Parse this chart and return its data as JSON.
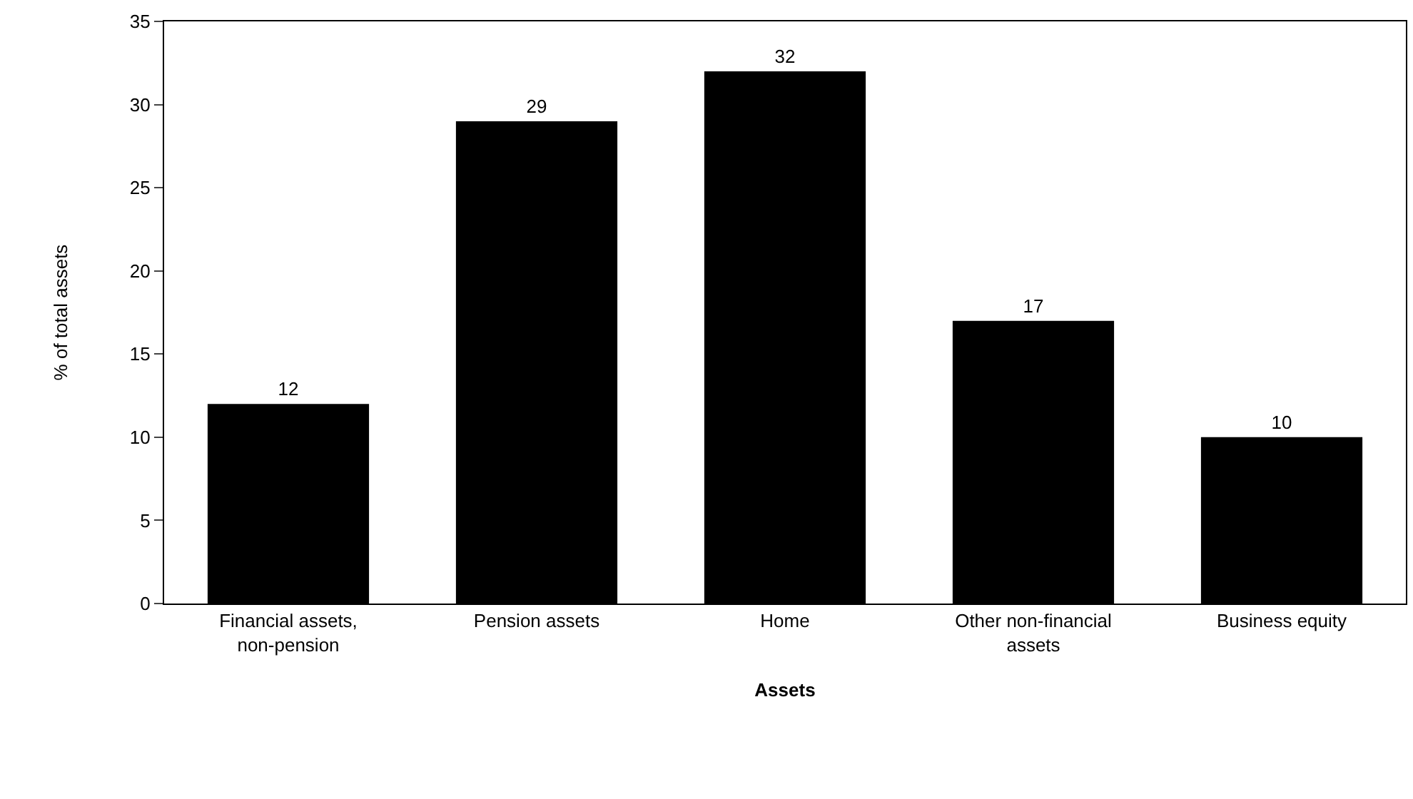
{
  "chart_data": {
    "type": "bar",
    "xlabel": "Assets",
    "ylabel": "% of total assets",
    "categories": [
      "Financial assets, non-pension",
      "Pension assets",
      "Home",
      "Other non-financial assets",
      "Business equity"
    ],
    "values": [
      12,
      29,
      32,
      17,
      10
    ],
    "color": "#000000",
    "ylim": [
      0,
      35
    ],
    "yticks": [
      0,
      5,
      10,
      15,
      20,
      25,
      30,
      35
    ],
    "data_labels": true
  }
}
